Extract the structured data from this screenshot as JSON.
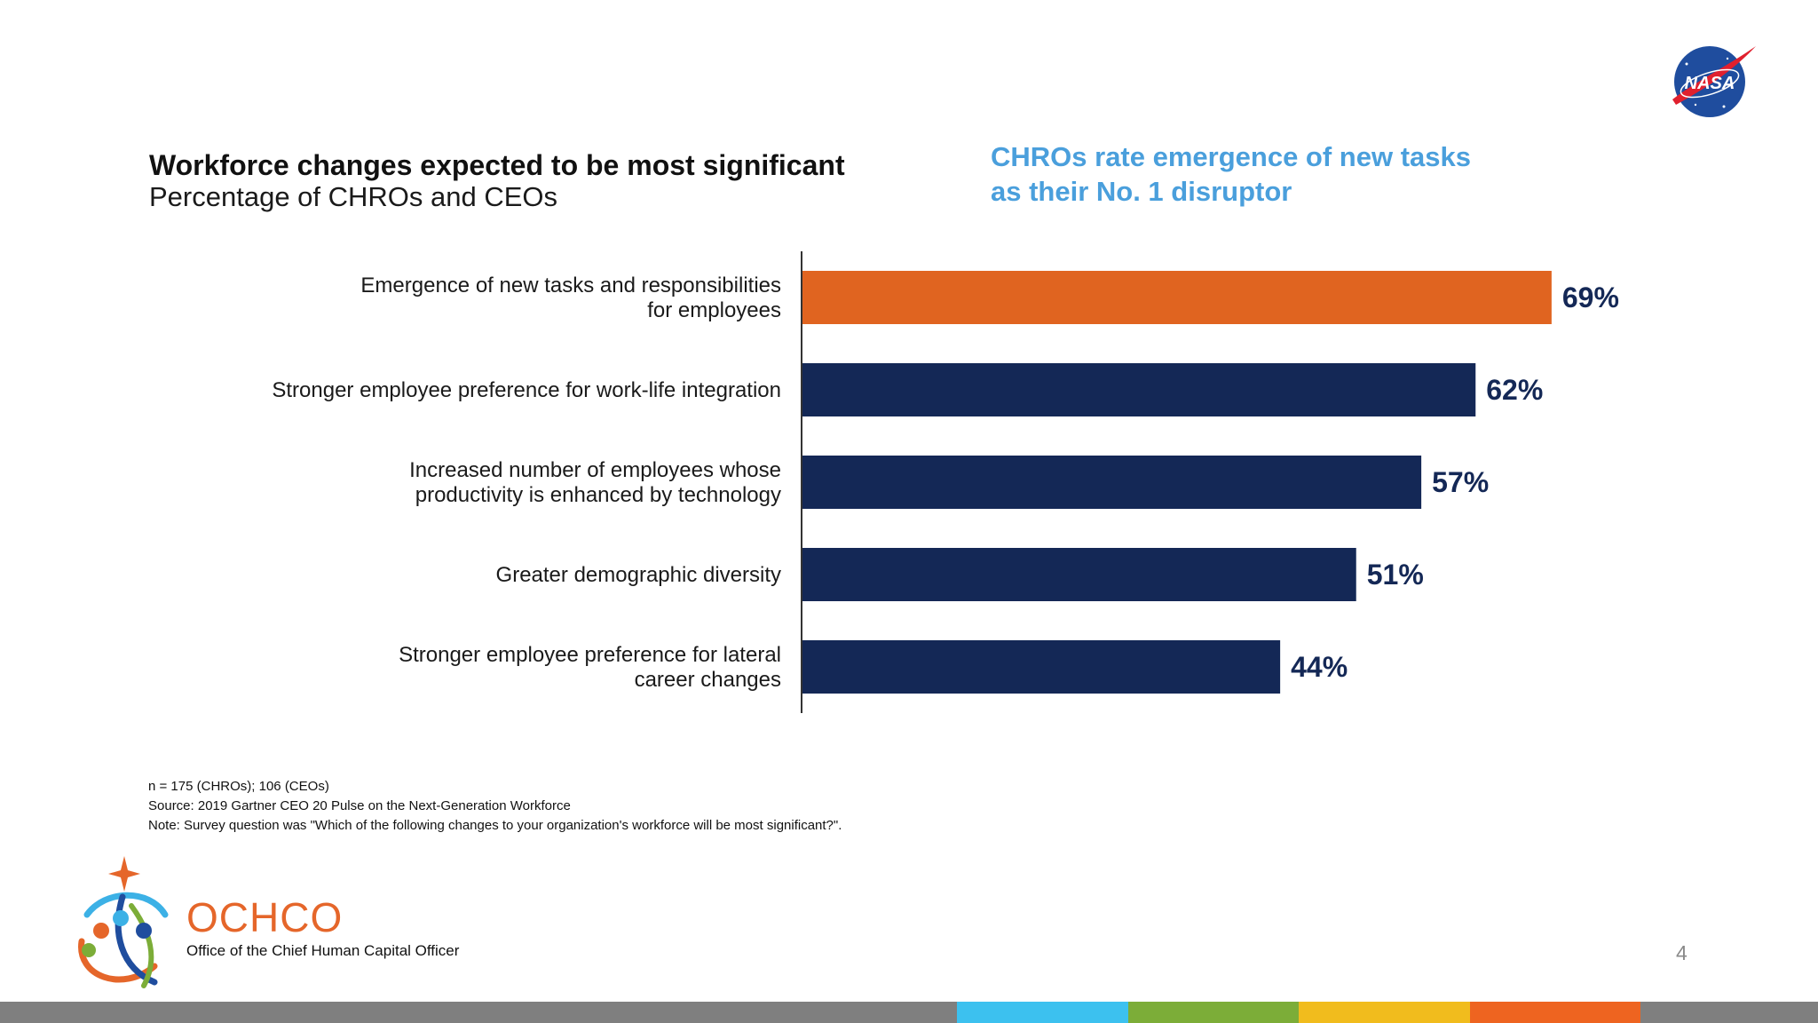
{
  "slide": {
    "page_number": "4"
  },
  "chart_data": {
    "type": "bar",
    "orientation": "horizontal",
    "title": "Workforce changes expected to be most significant",
    "subtitle": "Percentage of CHROs and CEOs",
    "categories": [
      [
        "Emergence of new tasks and responsibilities",
        "for employees"
      ],
      [
        "Stronger employee preference for work-life integration"
      ],
      [
        "Increased number of employees whose",
        "productivity is enhanced by technology"
      ],
      [
        "Greater demographic diversity"
      ],
      [
        "Stronger employee preference for lateral",
        "career changes"
      ]
    ],
    "values": [
      69,
      62,
      57,
      51,
      44
    ],
    "value_labels": [
      "69%",
      "62%",
      "57%",
      "51%",
      "44%"
    ],
    "unit": "%",
    "xlim": [
      0,
      100
    ],
    "highlight_index": 0,
    "colors": {
      "highlight": "#e06420",
      "default": "#142856",
      "axis": "#333333"
    },
    "grid": false
  },
  "callout": {
    "text": "CHROs rate emergence of new tasks as their No. 1 disruptor",
    "color": "#4a9fdc"
  },
  "notes": {
    "sample": "n = 175 (CHROs); 106 (CEOs)",
    "source": "Source: 2019 Gartner CEO 20 Pulse on the Next-Generation Workforce",
    "note": "Note: Survey question was \"Which of the following changes to your organization's workforce will be most significant?\"."
  },
  "branding": {
    "nasa_logo_text": "NASA",
    "ochco_name": "OCHCO",
    "ochco_full": "Office of the Chief Human Capital Officer",
    "footer_colors": [
      "#7f7f7f",
      "#3cc1ef",
      "#7cad38",
      "#f1bc1d",
      "#ee6420",
      "#7f7f7f"
    ]
  }
}
